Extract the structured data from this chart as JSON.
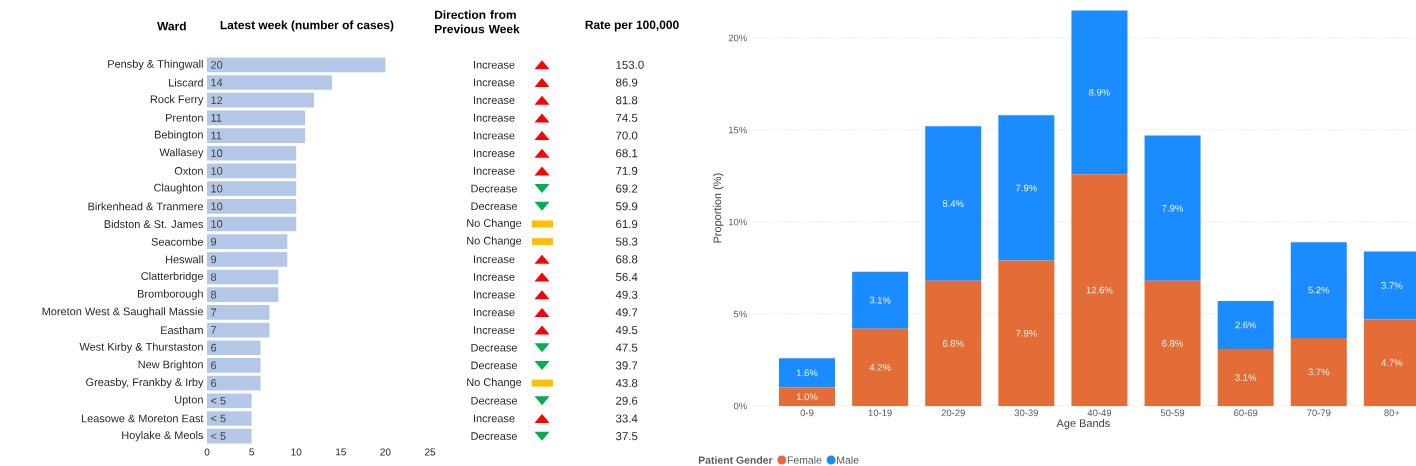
{
  "chart_data": [
    {
      "type": "bar",
      "orientation": "horizontal",
      "title": "Latest week (number of cases)",
      "ylabel": "Ward",
      "categories": [
        "Pensby & Thingwall",
        "Liscard",
        "Rock Ferry",
        "Prenton",
        "Bebington",
        "Wallasey",
        "Oxton",
        "Claughton",
        "Birkenhead & Tranmere",
        "Bidston & St. James",
        "Seacombe",
        "Heswall",
        "Clatterbridge",
        "Bromborough",
        "Moreton West & Saughall Massie",
        "Eastham",
        "West Kirby & Thurstaston",
        "New Brighton",
        "Greasby, Frankby & Irby",
        "Upton",
        "Leasowe & Moreton East",
        "Hoylake & Meols"
      ],
      "values": [
        20,
        14,
        12,
        11,
        11,
        10,
        10,
        10,
        10,
        10,
        9,
        9,
        8,
        8,
        7,
        7,
        6,
        6,
        6,
        5,
        5,
        5
      ],
      "value_labels": [
        "20",
        "14",
        "12",
        "11",
        "11",
        "10",
        "10",
        "10",
        "10",
        "10",
        "9",
        "9",
        "8",
        "8",
        "7",
        "7",
        "6",
        "6",
        "6",
        "< 5",
        "< 5",
        "< 5"
      ],
      "color": "#b4c7e7",
      "xlim": [
        0,
        25
      ],
      "xticks": [
        0,
        5,
        10,
        15,
        20,
        25
      ]
    },
    {
      "type": "other",
      "title": "Direction from Previous Week",
      "categories": [
        "Increase",
        "Increase",
        "Increase",
        "Increase",
        "Increase",
        "Increase",
        "Increase",
        "Decrease",
        "Decrease",
        "No Change",
        "No Change",
        "Increase",
        "Increase",
        "Increase",
        "Increase",
        "Increase",
        "Decrease",
        "Decrease",
        "No Change",
        "Decrease",
        "Increase",
        "Decrease"
      ],
      "colors": [
        "#ff0000",
        "#ff0000",
        "#ff0000",
        "#ff0000",
        "#ff0000",
        "#ff0000",
        "#ff0000",
        "#00b050",
        "#00b050",
        "#ffc000",
        "#ffc000",
        "#ff0000",
        "#ff0000",
        "#ff0000",
        "#ff0000",
        "#ff0000",
        "#00b050",
        "#00b050",
        "#ffc000",
        "#00b050",
        "#ff0000",
        "#00b050"
      ]
    },
    {
      "type": "other",
      "title": "Rate per 100,000",
      "value_labels": [
        "153.0",
        "86.9",
        "81.8",
        "74.5",
        "70.0",
        "68.1",
        "71.9",
        "69.2",
        "59.9",
        "61.9",
        "58.3",
        "68.8",
        "56.4",
        "49.3",
        "49.7",
        "49.5",
        "47.5",
        "39.7",
        "43.8",
        "29.6",
        "33.4",
        "37.5"
      ]
    },
    {
      "type": "bar",
      "stacked": true,
      "xlabel": "Age Bands",
      "ylabel": "Proportion (%)",
      "legend_title": "Patient Gender",
      "legend": "bottom",
      "grid": "y",
      "categories": [
        "0-9",
        "10-19",
        "20-29",
        "30-39",
        "40-49",
        "50-59",
        "60-69",
        "70-79",
        "80+"
      ],
      "series": [
        {
          "name": "Female",
          "color": "#e46c37",
          "values": [
            1.0,
            4.2,
            6.8,
            7.9,
            12.6,
            6.8,
            3.1,
            3.7,
            4.7
          ],
          "value_labels": [
            "1.0%",
            "4.2%",
            "6.8%",
            "7.9%",
            "12.6%",
            "6.8%",
            "3.1%",
            "3.7%",
            "4.7%"
          ]
        },
        {
          "name": "Male",
          "color": "#1a8cff",
          "values": [
            1.6,
            3.1,
            8.4,
            7.9,
            8.9,
            7.9,
            2.6,
            5.2,
            3.7
          ],
          "value_labels": [
            "1.6%",
            "3.1%",
            "8.4%",
            "7.9%",
            "8.9%",
            "7.9%",
            "2.6%",
            "5.2%",
            "3.7%"
          ]
        }
      ],
      "ylim": [
        0,
        21.5
      ],
      "yticks": [
        {
          "value": 0,
          "label": "0%"
        },
        {
          "value": 5,
          "label": "5%"
        },
        {
          "value": 10,
          "label": "10%"
        },
        {
          "value": 15,
          "label": "15%"
        },
        {
          "value": 20,
          "label": "20%"
        }
      ]
    }
  ]
}
